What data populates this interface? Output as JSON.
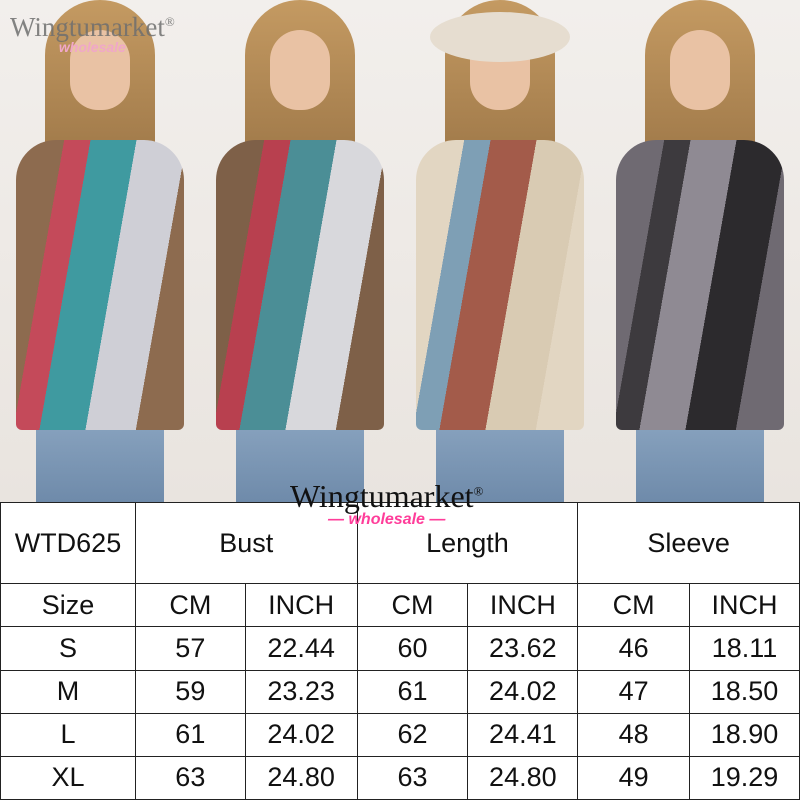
{
  "brand": {
    "name": "Wingtumarket",
    "registered": "®",
    "tagline": "wholesale"
  },
  "colors": {
    "tagline_pink": "#ff3d9a",
    "accent_teal": "#2fb8a8",
    "accent_blue": "#5b8fd8"
  },
  "photos": [
    {
      "jacket_colors": [
        "#8d6b4f",
        "#c44a5a",
        "#3f9aa0",
        "#cfcfd6"
      ]
    },
    {
      "jacket_colors": [
        "#7e6048",
        "#b8404f",
        "#4b8e96",
        "#d8d8dc"
      ]
    },
    {
      "jacket_colors": [
        "#e2d6c2",
        "#7e9fb5",
        "#a35b4a",
        "#d9cbb3"
      ]
    },
    {
      "jacket_colors": [
        "#6f6a72",
        "#3d3a3e",
        "#8f8a93",
        "#2c2a2d"
      ]
    }
  ],
  "table": {
    "code": "WTD625",
    "groups": [
      "Bust",
      "Length",
      "Sleeve"
    ],
    "size_label": "Size",
    "units": [
      "CM",
      "INCH"
    ],
    "rows": [
      {
        "size": "S",
        "values": [
          "57",
          "22.44",
          "60",
          "23.62",
          "46",
          "18.11"
        ]
      },
      {
        "size": "M",
        "values": [
          "59",
          "23.23",
          "61",
          "24.02",
          "47",
          "18.50"
        ]
      },
      {
        "size": "L",
        "values": [
          "61",
          "24.02",
          "62",
          "24.41",
          "48",
          "18.90"
        ]
      },
      {
        "size": "XL",
        "values": [
          "63",
          "24.80",
          "63",
          "24.80",
          "49",
          "19.29"
        ]
      }
    ]
  }
}
